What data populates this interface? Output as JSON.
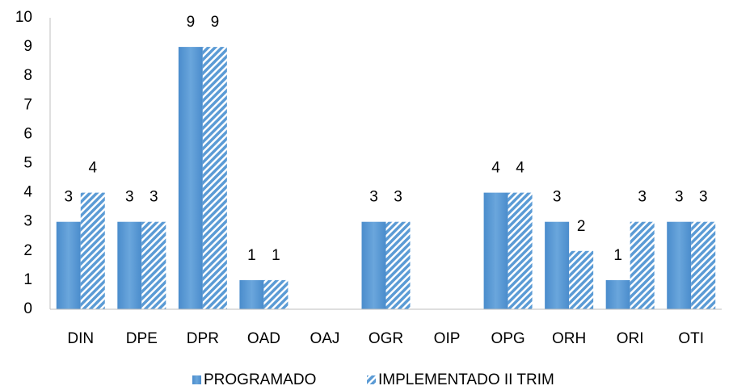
{
  "chart_data": {
    "type": "bar",
    "categories": [
      "DIN",
      "DPE",
      "DPR",
      "OAD",
      "OAJ",
      "OGR",
      "OIP",
      "OPG",
      "ORH",
      "ORI",
      "OTI"
    ],
    "series": [
      {
        "name": "PROGRAMADO",
        "color": "#5b9bd5",
        "hatch": false,
        "values": [
          3,
          3,
          9,
          1,
          null,
          3,
          null,
          4,
          3,
          1,
          3
        ]
      },
      {
        "name": "IMPLEMENTADO II TRIM",
        "color": "#5b9bd5",
        "hatch": true,
        "values": [
          4,
          3,
          9,
          1,
          null,
          3,
          null,
          4,
          2,
          3,
          3
        ]
      }
    ],
    "ylim": [
      0,
      10
    ],
    "yticks": [
      0,
      1,
      2,
      3,
      4,
      5,
      6,
      7,
      8,
      9,
      10
    ],
    "grid": false,
    "legend": "bottom"
  }
}
